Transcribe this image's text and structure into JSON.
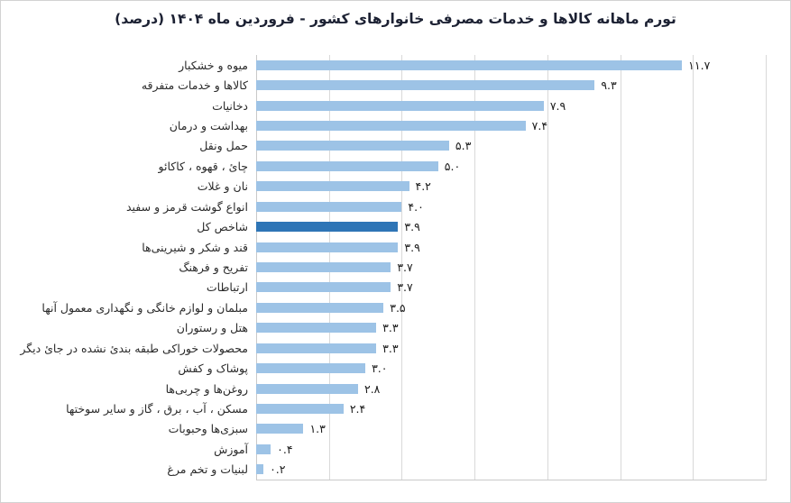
{
  "title": "تورم ماهانه کالاها و خدمات مصرفی خانوارهای کشور - فروردین ماه ۱۴۰۴ (درصد)",
  "colors": {
    "bar": "#9DC3E6",
    "highlight_bar": "#2E75B6",
    "gridline": "#D9D9D9",
    "axis": "#C9C9C9",
    "title_text": "#1C2133",
    "label_text": "#2B2B2B",
    "value_text": "#1C1C1C",
    "frame": "#D2D2D2"
  },
  "chart_data": {
    "type": "bar",
    "orientation": "horizontal",
    "title": "تورم ماهانه کالاها و خدمات مصرفی خانوارهای کشور - فروردین ماه ۱۴۰۴ (درصد)",
    "xlabel": "",
    "ylabel": "",
    "xlim": [
      0,
      14
    ],
    "gridline_interval": 2,
    "grid": true,
    "legend": false,
    "tick_labels_visible": false,
    "highlight_index": 8,
    "highlight_category": "شاخص کل",
    "categories": [
      "میوه و خشکبار",
      "کالاها و خدمات متفرقه",
      "دخانیات",
      "بهداشت و درمان",
      "حمل ونقل",
      "چائ ، قهوه ، کاکائو",
      "نان و غلات",
      "انواع گوشت قرمز و سفید",
      "شاخص کل",
      "قند و شکر و شیرینی‌ها",
      "تفریح و فرهنگ",
      "ارتباطات",
      "مبلمان و لوازم خانگی و نگهداری معمول آنها",
      "هتل و رستوران",
      "محصولات خوراکی طبقه بندئ نشده در جائ دیگر",
      "پوشاک و کفش",
      "روغن‌ها و چربی‌ها",
      "مسکن ، آب ، برق ، گاز و سایر سوختها",
      "سبزی‌ها وحبوبات",
      "آموزش",
      "لبنیات و تخم مرغ"
    ],
    "values": [
      11.7,
      9.3,
      7.9,
      7.4,
      5.3,
      5.0,
      4.2,
      4.0,
      3.9,
      3.9,
      3.7,
      3.7,
      3.5,
      3.3,
      3.3,
      3.0,
      2.8,
      2.4,
      1.3,
      0.4,
      0.2
    ],
    "value_labels": [
      "۱۱.۷",
      "۹.۳",
      "۷.۹",
      "۷.۴",
      "۵.۳",
      "۵.۰",
      "۴.۲",
      "۴.۰",
      "۳.۹",
      "۳.۹",
      "۳.۷",
      "۳.۷",
      "۳.۵",
      "۳.۳",
      "۳.۳",
      "۳.۰",
      "۲.۸",
      "۲.۴",
      "۱.۳",
      "۰.۴",
      "۰.۲"
    ]
  }
}
